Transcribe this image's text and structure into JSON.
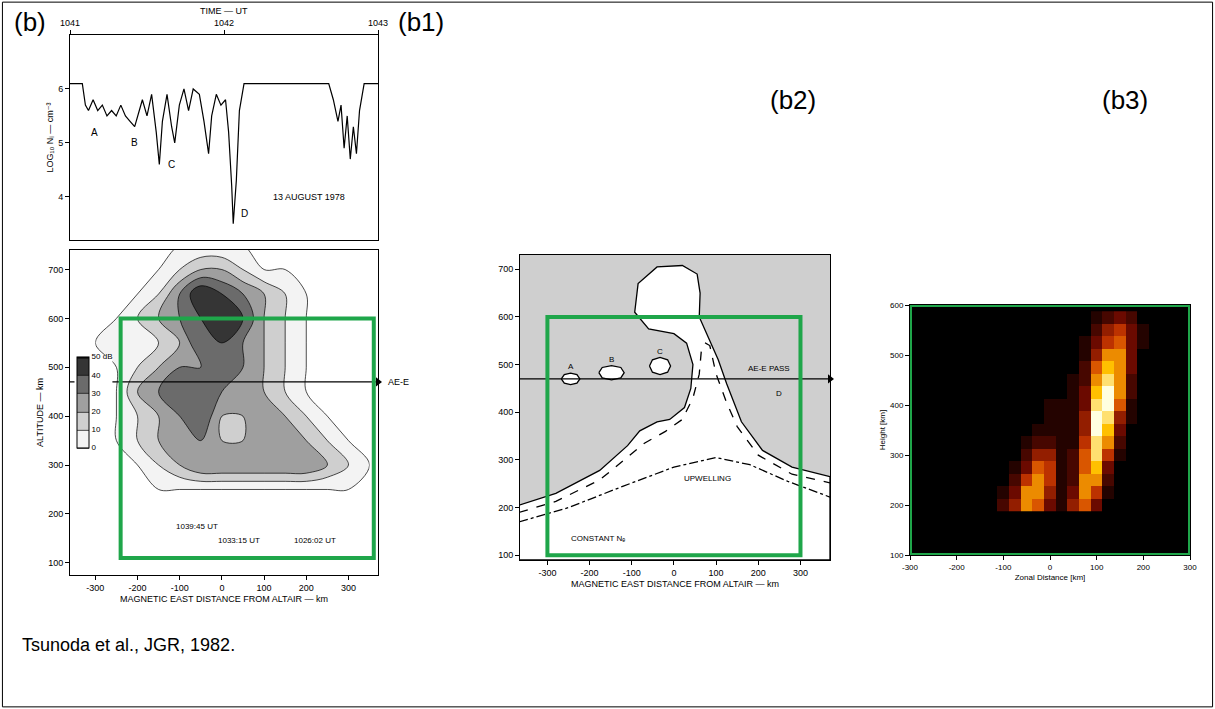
{
  "panel_labels": {
    "b": "(b)",
    "b1": "(b1)",
    "b2": "(b2)",
    "b3": "(b3)"
  },
  "citation": "Tsunoda et al., JGR, 1982.",
  "chart_data": [
    {
      "type": "line",
      "x_title": "TIME — UT",
      "y_title": "LOG₁₀ Nᵢ — cm⁻³",
      "x": [
        1041.0,
        1041.08,
        1041.1,
        1041.12,
        1041.15,
        1041.18,
        1041.21,
        1041.24,
        1041.27,
        1041.3,
        1041.33,
        1041.36,
        1041.39,
        1041.42,
        1041.45,
        1041.47,
        1041.5,
        1041.53,
        1041.56,
        1041.58,
        1041.6,
        1041.63,
        1041.66,
        1041.68,
        1041.71,
        1041.74,
        1041.77,
        1041.8,
        1041.84,
        1041.87,
        1041.9,
        1041.92,
        1041.95,
        1041.98,
        1042.01,
        1042.03,
        1042.05,
        1042.06,
        1042.08,
        1042.1,
        1042.13,
        1042.3,
        1042.5,
        1042.68,
        1042.71,
        1042.74,
        1042.76,
        1042.78,
        1042.8,
        1042.82,
        1042.84,
        1042.86,
        1042.88,
        1042.91,
        1043.0
      ],
      "values": [
        6.1,
        6.1,
        5.7,
        5.6,
        5.8,
        5.6,
        5.7,
        5.5,
        5.6,
        5.5,
        5.7,
        5.5,
        5.4,
        5.3,
        5.6,
        5.8,
        5.5,
        5.9,
        5.2,
        4.6,
        5.4,
        5.9,
        5.3,
        5.0,
        5.7,
        6.0,
        5.6,
        6.0,
        5.9,
        5.4,
        4.8,
        5.5,
        5.9,
        5.7,
        5.8,
        5.2,
        4.2,
        3.5,
        4.3,
        5.6,
        6.1,
        6.1,
        6.1,
        6.1,
        5.8,
        5.4,
        5.7,
        4.9,
        5.5,
        4.7,
        5.3,
        4.8,
        5.6,
        6.1,
        6.1
      ],
      "color": "#000000",
      "xlim": [
        1041,
        1043
      ],
      "xticks": [
        1041,
        1042,
        1043
      ],
      "ylim": [
        3.2,
        7
      ],
      "yticks": [
        4,
        5,
        6
      ],
      "annotations": [
        {
          "text": "A",
          "x": 1041.16,
          "y": 5.2
        },
        {
          "text": "B",
          "x": 1041.42,
          "y": 5.0
        },
        {
          "text": "C",
          "x": 1041.66,
          "y": 4.6
        },
        {
          "text": "D",
          "x": 1042.13,
          "y": 3.7
        },
        {
          "text": "13 AUGUST 1978",
          "x": 1042.55,
          "y": 4.0
        }
      ]
    },
    {
      "type": "contour",
      "x_title": "MAGNETIC EAST DISTANCE FROM ALTAIR — km",
      "y_title": "ALTITUDE — km",
      "x": [
        -300,
        -250,
        -200,
        -150,
        -100,
        -50,
        0,
        50,
        100,
        150,
        200,
        250,
        300,
        350
      ],
      "y": [
        150,
        200,
        250,
        300,
        350,
        400,
        450,
        500,
        550,
        600,
        650,
        700,
        750
      ],
      "z": [
        [
          0,
          0,
          0,
          0,
          0,
          0,
          0,
          0,
          0,
          0,
          0,
          0,
          0,
          0
        ],
        [
          0,
          0,
          0,
          0,
          0,
          0,
          0,
          0,
          0,
          0,
          0,
          0,
          0,
          0
        ],
        [
          0,
          0,
          0,
          0,
          0,
          0,
          0,
          0,
          0,
          0,
          0,
          0,
          0,
          0
        ],
        [
          0,
          0,
          0,
          10,
          20,
          30,
          30,
          30,
          30,
          30,
          30,
          20,
          10,
          0
        ],
        [
          0,
          0,
          10,
          20,
          30,
          30,
          20,
          20,
          30,
          30,
          20,
          10,
          0,
          0
        ],
        [
          0,
          0,
          10,
          20,
          30,
          40,
          20,
          20,
          30,
          20,
          10,
          0,
          0,
          0
        ],
        [
          0,
          0,
          20,
          30,
          40,
          40,
          30,
          30,
          20,
          10,
          0,
          0,
          0,
          0
        ],
        [
          0,
          0,
          10,
          20,
          30,
          30,
          40,
          30,
          20,
          10,
          0,
          0,
          0,
          0
        ],
        [
          0,
          10,
          10,
          10,
          20,
          40,
          40,
          30,
          20,
          10,
          0,
          0,
          0,
          0
        ],
        [
          0,
          0,
          10,
          20,
          30,
          40,
          50,
          40,
          20,
          10,
          0,
          0,
          0,
          0
        ],
        [
          0,
          0,
          0,
          10,
          30,
          50,
          40,
          30,
          20,
          10,
          0,
          0,
          0,
          0
        ],
        [
          0,
          0,
          0,
          0,
          10,
          20,
          20,
          10,
          0,
          0,
          0,
          0,
          0,
          0
        ],
        [
          0,
          0,
          0,
          0,
          0,
          0,
          0,
          0,
          0,
          0,
          0,
          0,
          0,
          0
        ]
      ],
      "contour_levels": [
        0,
        10,
        20,
        30,
        40,
        50
      ],
      "colorbar_ticks": [
        {
          "value": 50,
          "label": "50 dB"
        },
        40,
        30,
        20,
        10,
        0
      ],
      "xlim": [
        -360,
        370
      ],
      "xticks": [
        -300,
        -200,
        -100,
        0,
        100,
        200,
        300
      ],
      "ylim": [
        75,
        740
      ],
      "yticks": [
        100,
        200,
        300,
        400,
        500,
        600,
        700
      ],
      "track": {
        "text": "AE-E",
        "altitude": 470
      },
      "annotations": [
        {
          "text": "1039:45 UT",
          "x": -60,
          "y": 175
        },
        {
          "text": "1033:15 UT",
          "x": 40,
          "y": 145
        },
        {
          "text": "1026:02 UT",
          "x": 220,
          "y": 145
        }
      ],
      "highlight_box": {
        "x": [
          -240,
          360
        ],
        "y": [
          110,
          600
        ],
        "color": "#1fa64a"
      }
    },
    {
      "type": "line",
      "x_title": "MAGNETIC EAST DISTANCE FROM ALTAIR — km",
      "series": [
        {
          "type": "area",
          "line_style": "solid",
          "x": [
            -367,
            -280,
            -176,
            -110,
            -81,
            -40,
            -10,
            25,
            40,
            45,
            30,
            0,
            -60,
            -93,
            -85,
            -40,
            20,
            55,
            62,
            60,
            80,
            105,
            125,
            160,
            210,
            280,
            370,
            370,
            -367
          ],
          "y": [
            205,
            230,
            278,
            330,
            361,
            380,
            385,
            410,
            450,
            500,
            545,
            565,
            575,
            610,
            670,
            705,
            708,
            690,
            650,
            600,
            560,
            510,
            460,
            380,
            320,
            285,
            265,
            90,
            90
          ]
        },
        {
          "type": "area",
          "line_style": "solid",
          "x": [
            -267,
            -260,
            -245,
            -230,
            -223,
            -230,
            -245,
            -260,
            -267
          ],
          "y": [
            470,
            479,
            482,
            479,
            470,
            461,
            458,
            461,
            470
          ]
        },
        {
          "type": "area",
          "line_style": "solid",
          "x": [
            -178,
            -170,
            -148,
            -126,
            -118,
            -126,
            -148,
            -170,
            -178
          ],
          "y": [
            483,
            494,
            498,
            494,
            483,
            472,
            468,
            472,
            483
          ]
        },
        {
          "type": "area",
          "line_style": "solid",
          "x": [
            -58,
            -51,
            -33,
            -15,
            -8,
            -15,
            -33,
            -51,
            -58
          ],
          "y": [
            497,
            510,
            515,
            510,
            497,
            484,
            479,
            484,
            497
          ]
        },
        {
          "type": "line",
          "line_style": "dashed",
          "x": [
            -367,
            -280,
            -176,
            -110,
            -70,
            -20,
            20,
            45,
            60,
            65,
            75,
            85,
            100,
            125,
            150,
            200,
            280,
            370
          ],
          "y": [
            190,
            213,
            258,
            305,
            335,
            360,
            385,
            430,
            480,
            530,
            545,
            540,
            480,
            420,
            370,
            310,
            270,
            252
          ]
        },
        {
          "type": "line",
          "line_style": "dashdot",
          "x": [
            -367,
            -250,
            -120,
            0,
            100,
            180,
            270,
            370
          ],
          "y": [
            170,
            200,
            245,
            285,
            305,
            290,
            255,
            222
          ]
        }
      ],
      "xlim": [
        -365,
        370
      ],
      "xticks": [
        -300,
        -200,
        -100,
        0,
        100,
        200,
        300
      ],
      "ylim": [
        90,
        730
      ],
      "yticks": [
        100,
        200,
        300,
        400,
        500,
        600,
        700
      ],
      "track": {
        "text": "AE-E PASS",
        "altitude": 470,
        "label_x": 225,
        "label_y": 492
      },
      "annotations": [
        {
          "text": "A",
          "x": -245,
          "y": 497
        },
        {
          "text": "B",
          "x": -148,
          "y": 510
        },
        {
          "text": "C",
          "x": -33,
          "y": 527
        },
        {
          "text": "D",
          "x": 248,
          "y": 440
        },
        {
          "text": "UPWELLING",
          "x": 80,
          "y": 262
        },
        {
          "text": "CONSTANT Nₑ",
          "x": -180,
          "y": 135
        }
      ],
      "highlight_box": {
        "x": [
          -300,
          300
        ],
        "y": [
          100,
          600
        ],
        "color": "#1fa64a"
      }
    },
    {
      "type": "heatmap",
      "x_title": "Zonal Distance [km]",
      "y_title": "Height [km]",
      "x": [
        -125,
        -100,
        -75,
        -50,
        -25,
        0,
        25,
        50,
        75,
        100,
        125,
        150,
        175,
        200,
        225
      ],
      "y": [
        200,
        225,
        250,
        275,
        300,
        325,
        350,
        375,
        400,
        425,
        450,
        475,
        500,
        525,
        550,
        575
      ],
      "z": [
        [
          0,
          2,
          4,
          7,
          6,
          3,
          1,
          4,
          6,
          3,
          0,
          0,
          0,
          0,
          0
        ],
        [
          0,
          1,
          3,
          7,
          7,
          4,
          1,
          3,
          7,
          5,
          1,
          0,
          0,
          0,
          0
        ],
        [
          0,
          0,
          2,
          5,
          7,
          5,
          1,
          2,
          7,
          7,
          2,
          0,
          0,
          0,
          0
        ],
        [
          0,
          0,
          1,
          3,
          6,
          5,
          1,
          2,
          6,
          8,
          3,
          0,
          0,
          0,
          0
        ],
        [
          0,
          0,
          0,
          2,
          4,
          4,
          1,
          2,
          6,
          9,
          5,
          1,
          0,
          0,
          0
        ],
        [
          0,
          0,
          0,
          1,
          2,
          2,
          1,
          1,
          5,
          9,
          7,
          2,
          0,
          0,
          0
        ],
        [
          0,
          0,
          0,
          0,
          1,
          1,
          1,
          1,
          4,
          10,
          8,
          3,
          0,
          0,
          0
        ],
        [
          0,
          0,
          0,
          0,
          0,
          1,
          1,
          1,
          4,
          10,
          9,
          4,
          1,
          0,
          0
        ],
        [
          0,
          0,
          0,
          0,
          0,
          1,
          1,
          1,
          3,
          9,
          10,
          6,
          1,
          0,
          0
        ],
        [
          0,
          0,
          0,
          0,
          0,
          0,
          0,
          1,
          3,
          8,
          10,
          7,
          2,
          0,
          0
        ],
        [
          0,
          0,
          0,
          0,
          0,
          0,
          0,
          1,
          2,
          7,
          9,
          7,
          2,
          0,
          0
        ],
        [
          0,
          0,
          0,
          0,
          0,
          0,
          0,
          0,
          2,
          6,
          8,
          7,
          3,
          0,
          0
        ],
        [
          0,
          0,
          0,
          0,
          0,
          0,
          0,
          0,
          1,
          4,
          7,
          7,
          3,
          0,
          0
        ],
        [
          0,
          0,
          0,
          0,
          0,
          0,
          0,
          0,
          1,
          3,
          5,
          6,
          3,
          1,
          0
        ],
        [
          0,
          0,
          0,
          0,
          0,
          0,
          0,
          0,
          0,
          2,
          4,
          5,
          3,
          1,
          0
        ],
        [
          0,
          0,
          0,
          0,
          0,
          0,
          0,
          0,
          0,
          1,
          2,
          3,
          2,
          0,
          0
        ]
      ],
      "z_range": [
        0,
        10
      ],
      "xlim": [
        -300,
        300
      ],
      "xticks": [
        -300,
        -200,
        -100,
        0,
        100,
        200,
        300
      ],
      "ylim": [
        100,
        600
      ],
      "yticks": [
        100,
        200,
        300,
        400,
        500,
        600
      ],
      "highlight_box": {
        "x": [
          -300,
          300
        ],
        "y": [
          100,
          600
        ],
        "color": "#1fa64a"
      }
    }
  ]
}
